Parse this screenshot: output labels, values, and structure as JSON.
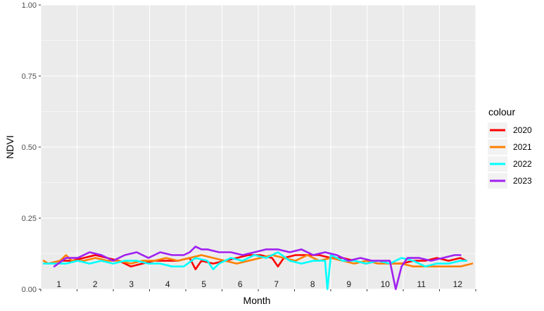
{
  "chart_data": {
    "type": "line",
    "xlabel": "Month",
    "ylabel": "NDVI",
    "ylim": [
      0,
      1
    ],
    "xlim": [
      1,
      365
    ],
    "yticks": [
      "0.00",
      "0.25",
      "0.50",
      "0.75",
      "1.00"
    ],
    "ytick_values": [
      0,
      0.25,
      0.5,
      0.75,
      1
    ],
    "month_labels": [
      "1",
      "2",
      "3",
      "4",
      "5",
      "6",
      "7",
      "8",
      "9",
      "10",
      "11",
      "12"
    ],
    "grid": true,
    "legend_title": "colour",
    "legend_position": "right",
    "series": [
      {
        "name": "2020",
        "color": "#ff0000",
        "x": [
          5,
          15,
          25,
          35,
          45,
          55,
          65,
          75,
          85,
          95,
          105,
          115,
          125,
          130,
          135,
          145,
          155,
          165,
          175,
          185,
          195,
          200,
          205,
          215,
          225,
          235,
          245,
          255,
          265,
          275,
          285,
          295,
          305,
          315,
          325,
          335,
          345,
          355,
          360
        ],
        "y": [
          0.09,
          0.1,
          0.1,
          0.11,
          0.12,
          0.11,
          0.1,
          0.08,
          0.09,
          0.1,
          0.1,
          0.1,
          0.11,
          0.07,
          0.1,
          0.09,
          0.1,
          0.11,
          0.12,
          0.12,
          0.11,
          0.08,
          0.11,
          0.12,
          0.12,
          0.12,
          0.11,
          0.11,
          0.1,
          0.09,
          0.1,
          0.09,
          0.09,
          0.1,
          0.1,
          0.11,
          0.1,
          0.11,
          0.1
        ]
      },
      {
        "name": "2021",
        "color": "#ff8000",
        "x": [
          1,
          5,
          15,
          20,
          25,
          35,
          45,
          55,
          65,
          75,
          85,
          95,
          105,
          115,
          125,
          135,
          145,
          155,
          165,
          175,
          185,
          195,
          205,
          215,
          225,
          235,
          245,
          255,
          265,
          275,
          285,
          295,
          305,
          315,
          325,
          335,
          345,
          355,
          365
        ],
        "y": [
          0.1,
          0.09,
          0.1,
          0.12,
          0.1,
          0.1,
          0.11,
          0.1,
          0.1,
          0.09,
          0.1,
          0.1,
          0.11,
          0.1,
          0.11,
          0.12,
          0.11,
          0.1,
          0.09,
          0.1,
          0.11,
          0.12,
          0.11,
          0.1,
          0.12,
          0.1,
          0.11,
          0.1,
          0.09,
          0.1,
          0.09,
          0.09,
          0.09,
          0.08,
          0.08,
          0.08,
          0.08,
          0.08,
          0.09
        ]
      },
      {
        "name": "2022",
        "color": "#00ffff",
        "x": [
          1,
          10,
          20,
          30,
          40,
          50,
          60,
          70,
          80,
          90,
          100,
          110,
          120,
          130,
          140,
          145,
          150,
          160,
          170,
          180,
          190,
          200,
          210,
          220,
          230,
          240,
          242,
          245,
          255,
          265,
          275,
          285,
          295,
          305,
          315,
          325,
          335,
          345,
          355,
          360
        ],
        "y": [
          0.09,
          0.09,
          0.09,
          0.1,
          0.09,
          0.1,
          0.09,
          0.1,
          0.1,
          0.09,
          0.09,
          0.08,
          0.08,
          0.11,
          0.1,
          0.07,
          0.09,
          0.11,
          0.1,
          0.12,
          0.11,
          0.13,
          0.1,
          0.09,
          0.1,
          0.1,
          0.0,
          0.12,
          0.1,
          0.1,
          0.09,
          0.1,
          0.09,
          0.11,
          0.1,
          0.08,
          0.09,
          0.09,
          0.1,
          0.1
        ]
      },
      {
        "name": "2023",
        "color": "#a020f0",
        "x": [
          10,
          20,
          30,
          40,
          50,
          60,
          70,
          80,
          90,
          100,
          110,
          120,
          125,
          130,
          135,
          140,
          150,
          160,
          170,
          180,
          190,
          200,
          210,
          220,
          230,
          240,
          250,
          260,
          270,
          280,
          290,
          295,
          300,
          305,
          310,
          320,
          330,
          340,
          350,
          355
        ],
        "y": [
          0.08,
          0.11,
          0.11,
          0.13,
          0.12,
          0.1,
          0.12,
          0.13,
          0.11,
          0.13,
          0.12,
          0.12,
          0.13,
          0.15,
          0.14,
          0.14,
          0.13,
          0.13,
          0.12,
          0.13,
          0.14,
          0.14,
          0.13,
          0.14,
          0.12,
          0.13,
          0.12,
          0.1,
          0.11,
          0.1,
          0.1,
          0.1,
          0.0,
          0.08,
          0.11,
          0.11,
          0.1,
          0.11,
          0.12,
          0.12
        ]
      }
    ]
  }
}
